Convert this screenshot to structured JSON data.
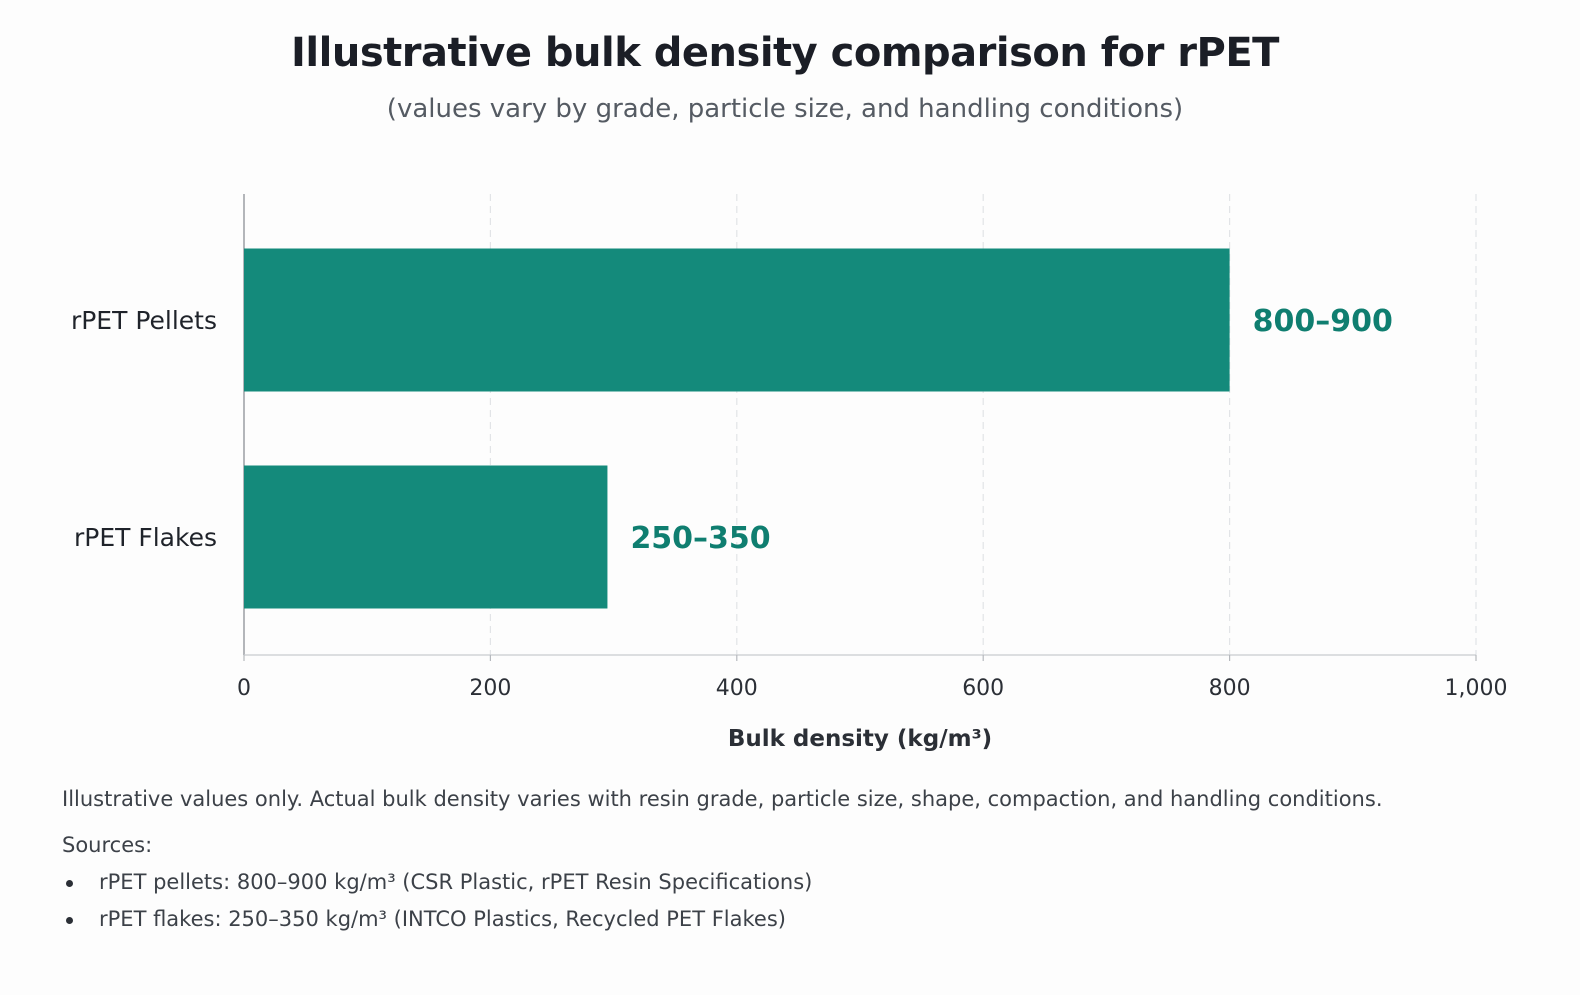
{
  "chart_data": {
    "type": "bar",
    "orientation": "horizontal",
    "title": "Illustrative bulk density comparison for rPET",
    "subtitle": "(values vary by grade, particle size, and handling conditions)",
    "categories": [
      "rPET Pellets",
      "rPET Flakes"
    ],
    "values": [
      800,
      295
    ],
    "ranges": [
      [
        800,
        900
      ],
      [
        250,
        350
      ]
    ],
    "data_labels": [
      "800–900",
      "250–350"
    ],
    "xlabel": "Bulk density (kg/m³)",
    "ylabel": "",
    "xlim": [
      0,
      1000
    ],
    "xticks": [
      0,
      200,
      400,
      600,
      800,
      1000
    ],
    "xtick_labels": [
      "0",
      "200",
      "400",
      "600",
      "800",
      "1,000"
    ],
    "grid": "vertical dashed",
    "bar_color": "#148a7b",
    "label_color": "#0f7e70"
  },
  "footer": {
    "note": "Illustrative values only. Actual bulk density varies with resin grade, particle size, shape, compaction, and handling conditions.",
    "sources_heading": "Sources:",
    "sources": [
      "rPET pellets: 800–900 kg/m³ (CSR Plastic, rPET Resin Specifications)",
      "rPET flakes: 250–350 kg/m³ (INTCO Plastics, Recycled PET Flakes)"
    ]
  }
}
